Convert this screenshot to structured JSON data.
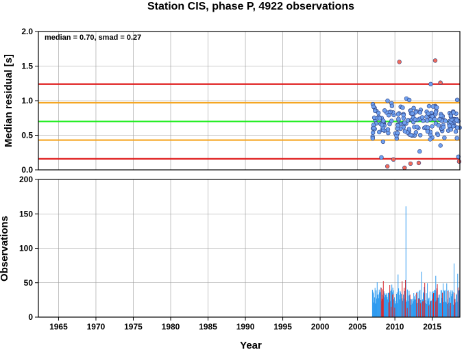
{
  "chart_data": {
    "title": "Station CIS, phase P, 4922 observations",
    "xlabel": "Year",
    "x_ticks": [
      1965,
      1970,
      1975,
      1980,
      1985,
      1990,
      1995,
      2000,
      2005,
      2010,
      2015
    ],
    "xlim": [
      1962.3,
      2018.7
    ],
    "top_panel": {
      "type": "scatter",
      "ylabel": "Median residual [s]",
      "ylim": [
        0,
        2.0
      ],
      "y_ticks": [
        "0.0",
        "0.5",
        "1.0",
        "1.5",
        "2.0"
      ],
      "annotation": "median = 0.70, smad = 0.27",
      "reference_lines": [
        {
          "value": 0.7,
          "color": "#22ee22"
        },
        {
          "value": 0.43,
          "color": "#f5a623"
        },
        {
          "value": 0.97,
          "color": "#f5a623"
        },
        {
          "value": 0.16,
          "color": "#e02020"
        },
        {
          "value": 1.24,
          "color": "#e02020"
        }
      ],
      "inlier_color": "#6fa0f0",
      "outlier_color": "#f26b5b"
    },
    "bottom_panel": {
      "type": "bar",
      "ylabel": "Observations",
      "ylim": [
        0,
        200
      ],
      "y_ticks": [
        "0",
        "50",
        "100",
        "150",
        "200"
      ],
      "bar_color": "#2f9bf0",
      "highlight_color": "#d8282e"
    }
  }
}
